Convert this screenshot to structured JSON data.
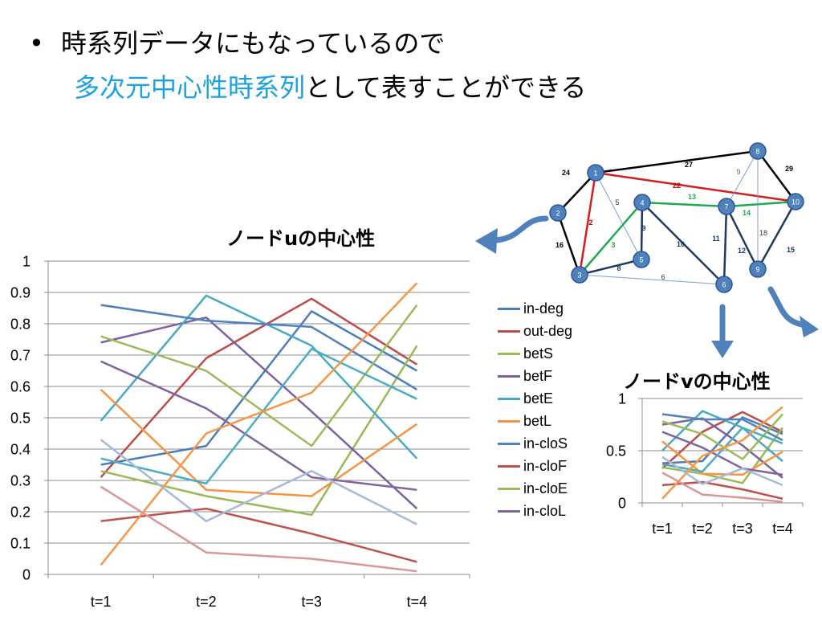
{
  "slide": {
    "bullet": "•",
    "line1": "時系列データにもなっているので",
    "line2_highlight": "多次元中心性時系列",
    "line2_rest": "として表すことができる",
    "highlight_color": "#1ba1e2"
  },
  "graph": {
    "nodes": [
      "1",
      "2",
      "3",
      "4",
      "5",
      "6",
      "7",
      "8",
      "9",
      "10"
    ],
    "edge_labels": [
      "24",
      "27",
      "29",
      "2",
      "5",
      "9",
      "22",
      "13",
      "14",
      "9",
      "16",
      "3",
      "8",
      "10",
      "11",
      "12",
      "18",
      "15",
      "6"
    ]
  },
  "chart_data": [
    {
      "type": "line",
      "title": "ノードuの中心性",
      "categories": [
        "t=1",
        "t=2",
        "t=3",
        "t=4"
      ],
      "ylim": [
        0,
        1
      ],
      "yticks": [
        "0",
        "0.1",
        "0.2",
        "0.3",
        "0.4",
        "0.5",
        "0.6",
        "0.7",
        "0.8",
        "0.9",
        "1"
      ],
      "grid": true,
      "legend_position": "right",
      "series": [
        {
          "name": "in-deg",
          "color": "#4a7ebb",
          "values": [
            0.35,
            0.41,
            0.84,
            0.65
          ]
        },
        {
          "name": "out-deg",
          "color": "#be4b48",
          "values": [
            0.31,
            0.69,
            0.88,
            0.67
          ]
        },
        {
          "name": "betS",
          "color": "#98b954",
          "values": [
            0.33,
            0.25,
            0.19,
            0.73
          ]
        },
        {
          "name": "betF",
          "color": "#7d60a0",
          "values": [
            0.74,
            0.82,
            0.52,
            0.21
          ]
        },
        {
          "name": "betE",
          "color": "#46aac5",
          "values": [
            0.49,
            0.89,
            0.73,
            0.37
          ]
        },
        {
          "name": "betL",
          "color": "#f69240",
          "values": [
            0.59,
            0.27,
            0.25,
            0.48
          ]
        },
        {
          "name": "in-cloS",
          "color": "#4f81bd",
          "values": [
            0.86,
            0.81,
            0.79,
            0.59
          ]
        },
        {
          "name": "in-cloF",
          "color": "#c0504d",
          "values": [
            0.17,
            0.21,
            0.13,
            0.04
          ]
        },
        {
          "name": "in-cloE",
          "color": "#9bbb59",
          "values": [
            0.76,
            0.65,
            0.41,
            0.86
          ]
        },
        {
          "name": "in-cloL",
          "color": "#8064a2",
          "values": [
            0.68,
            0.53,
            0.31,
            0.27
          ]
        },
        {
          "color": "#4bacc6",
          "values": [
            0.37,
            0.29,
            0.72,
            0.56
          ]
        },
        {
          "color": "#f79646",
          "values": [
            0.03,
            0.45,
            0.58,
            0.93
          ]
        },
        {
          "color": "#a5b9db",
          "values": [
            0.43,
            0.17,
            0.33,
            0.16
          ]
        },
        {
          "color": "#d99694",
          "values": [
            0.28,
            0.07,
            0.05,
            0.01
          ]
        }
      ]
    },
    {
      "type": "line",
      "title": "ノードvの中心性",
      "categories": [
        "t=1",
        "t=2",
        "t=3",
        "t=4"
      ],
      "ylim": [
        0,
        1
      ],
      "yticks": [
        "0",
        "0.5",
        "1"
      ],
      "grid": true,
      "series": [
        {
          "color": "#4a7ebb",
          "values": [
            0.38,
            0.4,
            0.82,
            0.66
          ]
        },
        {
          "color": "#be4b48",
          "values": [
            0.33,
            0.68,
            0.87,
            0.68
          ]
        },
        {
          "color": "#98b954",
          "values": [
            0.34,
            0.28,
            0.19,
            0.72
          ]
        },
        {
          "color": "#7d60a0",
          "values": [
            0.75,
            0.81,
            0.55,
            0.24
          ]
        },
        {
          "color": "#46aac5",
          "values": [
            0.5,
            0.88,
            0.72,
            0.4
          ]
        },
        {
          "color": "#f69240",
          "values": [
            0.59,
            0.28,
            0.27,
            0.49
          ]
        },
        {
          "color": "#4f81bd",
          "values": [
            0.85,
            0.8,
            0.8,
            0.6
          ]
        },
        {
          "color": "#c0504d",
          "values": [
            0.17,
            0.2,
            0.13,
            0.04
          ]
        },
        {
          "color": "#9bbb59",
          "values": [
            0.78,
            0.66,
            0.42,
            0.85
          ]
        },
        {
          "color": "#8064a2",
          "values": [
            0.68,
            0.53,
            0.33,
            0.27
          ]
        },
        {
          "color": "#4bacc6",
          "values": [
            0.37,
            0.3,
            0.72,
            0.57
          ]
        },
        {
          "color": "#f79646",
          "values": [
            0.04,
            0.45,
            0.6,
            0.92
          ]
        },
        {
          "color": "#a5b9db",
          "values": [
            0.44,
            0.18,
            0.33,
            0.17
          ]
        },
        {
          "color": "#d99694",
          "values": [
            0.29,
            0.08,
            0.05,
            0.01
          ]
        }
      ]
    }
  ]
}
